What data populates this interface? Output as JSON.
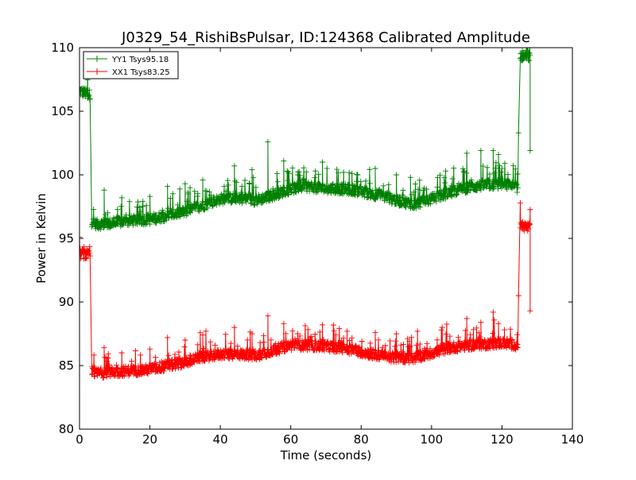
{
  "chart_data": {
    "type": "line",
    "title": "J0329_54_RishiBsPulsar, ID:124368 Calibrated Amplitude",
    "xlabel": "Time (seconds)",
    "ylabel": "Power in Kelvin",
    "xlim": [
      0,
      140
    ],
    "ylim": [
      80,
      110
    ],
    "xticks": [
      0,
      20,
      40,
      60,
      80,
      100,
      120,
      140
    ],
    "yticks": [
      80,
      85,
      90,
      95,
      100,
      105,
      110
    ],
    "grid": false,
    "legend_position": "top-left",
    "marker": "+",
    "series": [
      {
        "name": "YY1 Tsys95.18",
        "color": "#008000",
        "x": [
          0,
          1,
          2,
          3,
          3.5,
          5,
          10,
          15,
          20,
          25,
          30,
          35,
          40,
          45,
          50,
          55,
          60,
          65,
          70,
          75,
          80,
          85,
          90,
          95,
          100,
          105,
          110,
          115,
          120,
          124.5,
          125.2,
          126,
          127,
          128
        ],
        "y": [
          106.6,
          106.5,
          106.4,
          106.3,
          96.3,
          96.1,
          96.2,
          96.4,
          96.5,
          96.8,
          97.1,
          97.6,
          98.1,
          98.2,
          98.0,
          98.4,
          98.9,
          99.1,
          98.9,
          98.9,
          98.7,
          98.4,
          98.0,
          97.7,
          98.1,
          98.6,
          99.0,
          99.2,
          99.3,
          99.0,
          109.3,
          109.4,
          109.3,
          109.3
        ],
        "spikes": [
          {
            "x": 7,
            "y": 98.8
          },
          {
            "x": 12,
            "y": 98.2
          },
          {
            "x": 20,
            "y": 98.3
          },
          {
            "x": 25,
            "y": 99.1
          },
          {
            "x": 30,
            "y": 99.3
          },
          {
            "x": 35,
            "y": 99.6
          },
          {
            "x": 44,
            "y": 100.7
          },
          {
            "x": 49,
            "y": 100.4
          },
          {
            "x": 53.5,
            "y": 102.6
          },
          {
            "x": 58,
            "y": 101.1
          },
          {
            "x": 62,
            "y": 100.0
          },
          {
            "x": 67,
            "y": 100.3
          },
          {
            "x": 69,
            "y": 101.0
          },
          {
            "x": 75,
            "y": 100.2
          },
          {
            "x": 79,
            "y": 100.0
          },
          {
            "x": 84,
            "y": 100.5
          },
          {
            "x": 90,
            "y": 100.0
          },
          {
            "x": 94,
            "y": 99.8
          },
          {
            "x": 104,
            "y": 100.3
          },
          {
            "x": 110,
            "y": 101.7
          },
          {
            "x": 114,
            "y": 101.9
          },
          {
            "x": 117.5,
            "y": 101.9
          },
          {
            "x": 119,
            "y": 101.6
          },
          {
            "x": 124.7,
            "y": 103.3
          },
          {
            "x": 128,
            "y": 101.9
          }
        ]
      },
      {
        "name": "XX1 Tsys83.25",
        "color": "#ff0000",
        "x": [
          0,
          1,
          2,
          3,
          3.5,
          5,
          10,
          15,
          20,
          25,
          30,
          35,
          40,
          45,
          50,
          55,
          60,
          65,
          70,
          75,
          80,
          85,
          90,
          95,
          100,
          105,
          110,
          115,
          120,
          124.5,
          125.2,
          126,
          127,
          128
        ],
        "y": [
          93.8,
          93.8,
          93.7,
          93.6,
          84.5,
          84.4,
          84.5,
          84.6,
          84.7,
          85.0,
          85.3,
          85.7,
          85.9,
          85.9,
          85.8,
          86.2,
          86.6,
          86.6,
          86.5,
          86.4,
          86.1,
          85.8,
          85.6,
          85.6,
          86.0,
          86.4,
          86.6,
          86.7,
          86.8,
          86.6,
          95.9,
          96.0,
          95.9,
          95.8
        ],
        "spikes": [
          {
            "x": 7,
            "y": 86.4
          },
          {
            "x": 12,
            "y": 86.0
          },
          {
            "x": 20,
            "y": 86.3
          },
          {
            "x": 25,
            "y": 87.2
          },
          {
            "x": 30,
            "y": 87.0
          },
          {
            "x": 35,
            "y": 87.4
          },
          {
            "x": 44,
            "y": 88.0
          },
          {
            "x": 49,
            "y": 87.5
          },
          {
            "x": 53.5,
            "y": 88.9
          },
          {
            "x": 58,
            "y": 88.3
          },
          {
            "x": 62,
            "y": 87.5
          },
          {
            "x": 69,
            "y": 88.2
          },
          {
            "x": 76,
            "y": 87.7
          },
          {
            "x": 84,
            "y": 87.6
          },
          {
            "x": 90,
            "y": 87.5
          },
          {
            "x": 96,
            "y": 87.7
          },
          {
            "x": 103,
            "y": 88.0
          },
          {
            "x": 110,
            "y": 88.7
          },
          {
            "x": 114,
            "y": 88.4
          },
          {
            "x": 117.5,
            "y": 89.2
          },
          {
            "x": 119,
            "y": 88.3
          },
          {
            "x": 124.7,
            "y": 90.5
          },
          {
            "x": 128,
            "y": 89.3
          }
        ]
      }
    ]
  }
}
